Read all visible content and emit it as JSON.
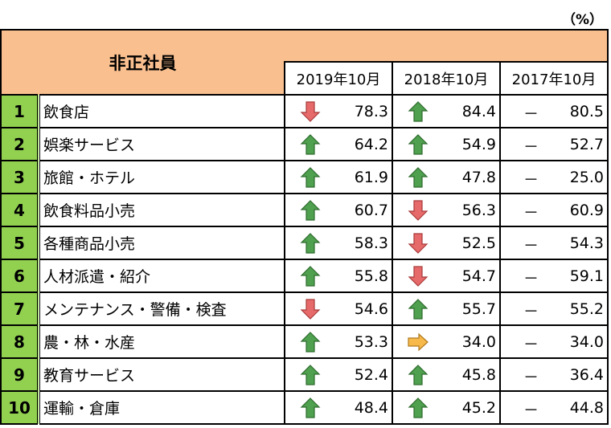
{
  "unit_label": "（%）",
  "header": {
    "title": "非正社員",
    "years": [
      "2019年10月",
      "2018年10月",
      "2017年10月"
    ]
  },
  "colors": {
    "header": "#f9bf8f",
    "rank": "#92d050",
    "up": "#4a9a4a",
    "down": "#e06060",
    "flat": "#f4b340"
  },
  "rows": [
    {
      "rank": "1",
      "name": "飲食店",
      "v2019": "78.3",
      "t2019": "down",
      "v2018": "84.4",
      "t2018": "up",
      "v2017": "80.5"
    },
    {
      "rank": "2",
      "name": "娯楽サービス",
      "v2019": "64.2",
      "t2019": "up",
      "v2018": "54.9",
      "t2018": "up",
      "v2017": "52.7"
    },
    {
      "rank": "3",
      "name": "旅館・ホテル",
      "v2019": "61.9",
      "t2019": "up",
      "v2018": "47.8",
      "t2018": "up",
      "v2017": "25.0"
    },
    {
      "rank": "4",
      "name": "飲食料品小売",
      "v2019": "60.7",
      "t2019": "up",
      "v2018": "56.3",
      "t2018": "down",
      "v2017": "60.9"
    },
    {
      "rank": "5",
      "name": "各種商品小売",
      "v2019": "58.3",
      "t2019": "up",
      "v2018": "52.5",
      "t2018": "down",
      "v2017": "54.3"
    },
    {
      "rank": "6",
      "name": "人材派遣・紹介",
      "v2019": "55.8",
      "t2019": "up",
      "v2018": "54.7",
      "t2018": "down",
      "v2017": "59.1"
    },
    {
      "rank": "7",
      "name": "メンテナンス・警備・検査",
      "v2019": "54.6",
      "t2019": "down",
      "v2018": "55.7",
      "t2018": "up",
      "v2017": "55.2"
    },
    {
      "rank": "8",
      "name": "農・林・水産",
      "v2019": "53.3",
      "t2019": "up",
      "v2018": "34.0",
      "t2018": "flat",
      "v2017": "34.0"
    },
    {
      "rank": "9",
      "name": "教育サービス",
      "v2019": "52.4",
      "t2019": "up",
      "v2018": "45.8",
      "t2018": "up",
      "v2017": "36.4"
    },
    {
      "rank": "10",
      "name": "運輸・倉庫",
      "v2019": "48.4",
      "t2019": "up",
      "v2018": "45.2",
      "t2018": "up",
      "v2017": "44.8"
    }
  ],
  "dash": "－"
}
